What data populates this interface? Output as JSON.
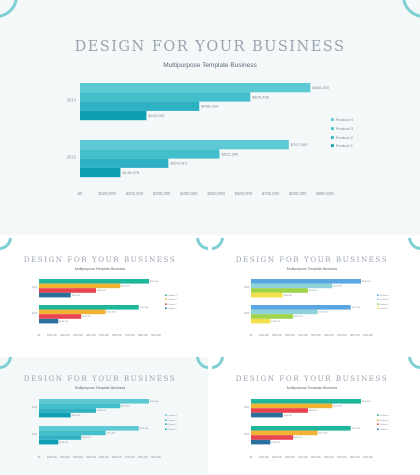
{
  "slides": [
    {
      "title": "DESIGN FOR YOUR BUSINESS",
      "subtitle": "Multipurpose Template Business",
      "colors": [
        "#0f9fb2",
        "#2eb1c2",
        "#43bfcc",
        "#5cc9d4"
      ]
    },
    {
      "title": "DESIGN FOR YOUR BUSINESS",
      "subtitle": "Multipurpose Template Business",
      "colors": [
        "#2a6f9e",
        "#e8434f",
        "#f2b233",
        "#1fb79c"
      ]
    },
    {
      "title": "DESIGN FOR YOUR BUSINESS",
      "subtitle": "Multipurpose Template Business",
      "colors": [
        "#f4e04d",
        "#9ed34a",
        "#8fd3d8",
        "#5aa6e3"
      ]
    },
    {
      "title": "DESIGN FOR YOUR BUSINESS",
      "subtitle": "Multipurpose Template Business",
      "colors": [
        "#0f9fb2",
        "#2eb1c2",
        "#43bfcc",
        "#5cc9d4"
      ]
    },
    {
      "title": "DESIGN FOR YOUR BUSINESS",
      "subtitle": "Multipurpose Template Business",
      "colors": [
        "#2a6f9e",
        "#e8434f",
        "#f2b233",
        "#1fb79c"
      ]
    }
  ],
  "chart_data": {
    "type": "bar",
    "orientation": "horizontal",
    "title": "DESIGN FOR YOUR BUSINESS",
    "subtitle": "Multipurpose Template Business",
    "categories": [
      "2014",
      "2015"
    ],
    "series": [
      {
        "name": "Product 1",
        "values": [
          243987,
          148578
        ]
      },
      {
        "name": "Product 2",
        "values": [
          438164,
          324512
        ]
      },
      {
        "name": "Product 3",
        "values": [
          625456,
          512300
        ]
      },
      {
        "name": "Product 4",
        "values": [
          846200,
          767000
        ]
      }
    ],
    "value_labels": {
      "2014": [
        "$243,987",
        "$438,164",
        "$625,456",
        "$846,200"
      ],
      "2015": [
        "$148,578",
        "$324,512",
        "$512,300",
        "$767,000"
      ]
    },
    "xlim": [
      0,
      900000
    ],
    "xticks": [
      "$0",
      "$100,000",
      "$200,000",
      "$300,000",
      "$400,000",
      "$500,000",
      "$600,000",
      "$700,000",
      "$800,000",
      "$900,000"
    ],
    "legend": [
      "Product 4",
      "Product 3",
      "Product 2",
      "Product 1"
    ],
    "legend_position": "right"
  }
}
